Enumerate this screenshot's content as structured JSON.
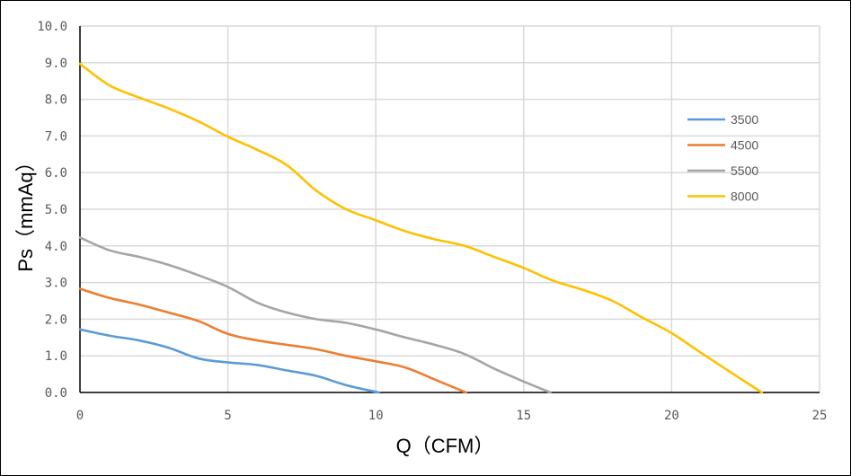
{
  "chart_data": {
    "type": "line",
    "title": "",
    "xlabel": "Q（CFM）",
    "ylabel": "Ps（mmAq）",
    "xlim": [
      0,
      25
    ],
    "ylim": [
      0,
      10
    ],
    "x_ticks": [
      "0",
      "5",
      "10",
      "15",
      "20",
      "25"
    ],
    "y_ticks": [
      "0.0",
      "1.0",
      "2.0",
      "3.0",
      "4.0",
      "5.0",
      "6.0",
      "7.0",
      "8.0",
      "9.0",
      "10.0"
    ],
    "grid": true,
    "legend_position": "right",
    "series": [
      {
        "name": "3500",
        "color": "#5B9BD5",
        "points": [
          [
            0,
            1.72
          ],
          [
            1,
            1.55
          ],
          [
            2,
            1.42
          ],
          [
            3,
            1.22
          ],
          [
            4,
            0.93
          ],
          [
            5,
            0.82
          ],
          [
            6,
            0.75
          ],
          [
            7,
            0.6
          ],
          [
            8,
            0.45
          ],
          [
            9,
            0.2
          ],
          [
            10.1,
            0.0
          ]
        ]
      },
      {
        "name": "4500",
        "color": "#ED7D31",
        "points": [
          [
            0,
            2.83
          ],
          [
            1,
            2.58
          ],
          [
            2,
            2.4
          ],
          [
            3,
            2.18
          ],
          [
            4,
            1.95
          ],
          [
            5,
            1.6
          ],
          [
            6,
            1.42
          ],
          [
            7,
            1.3
          ],
          [
            8,
            1.18
          ],
          [
            9,
            1.0
          ],
          [
            10,
            0.85
          ],
          [
            11,
            0.68
          ],
          [
            12,
            0.35
          ],
          [
            13.05,
            0.0
          ]
        ]
      },
      {
        "name": "5500",
        "color": "#A5A5A5",
        "points": [
          [
            0,
            4.23
          ],
          [
            1,
            3.88
          ],
          [
            2,
            3.7
          ],
          [
            3,
            3.48
          ],
          [
            4,
            3.2
          ],
          [
            5,
            2.88
          ],
          [
            6,
            2.45
          ],
          [
            7,
            2.18
          ],
          [
            8,
            2.0
          ],
          [
            9,
            1.9
          ],
          [
            10,
            1.72
          ],
          [
            11,
            1.5
          ],
          [
            12,
            1.3
          ],
          [
            13,
            1.05
          ],
          [
            14,
            0.65
          ],
          [
            15,
            0.3
          ],
          [
            15.9,
            0.0
          ]
        ]
      },
      {
        "name": "8000",
        "color": "#FFC000",
        "points": [
          [
            0,
            8.97
          ],
          [
            1,
            8.38
          ],
          [
            2,
            8.05
          ],
          [
            3,
            7.75
          ],
          [
            4,
            7.4
          ],
          [
            5,
            6.98
          ],
          [
            6,
            6.62
          ],
          [
            7,
            6.2
          ],
          [
            8,
            5.5
          ],
          [
            9,
            5.0
          ],
          [
            10,
            4.7
          ],
          [
            11,
            4.4
          ],
          [
            12,
            4.18
          ],
          [
            13,
            4.0
          ],
          [
            14,
            3.7
          ],
          [
            15,
            3.4
          ],
          [
            16,
            3.05
          ],
          [
            17,
            2.8
          ],
          [
            18,
            2.5
          ],
          [
            19,
            2.05
          ],
          [
            20,
            1.62
          ],
          [
            21,
            1.08
          ],
          [
            22,
            0.55
          ],
          [
            23.05,
            0.0
          ]
        ]
      }
    ]
  }
}
